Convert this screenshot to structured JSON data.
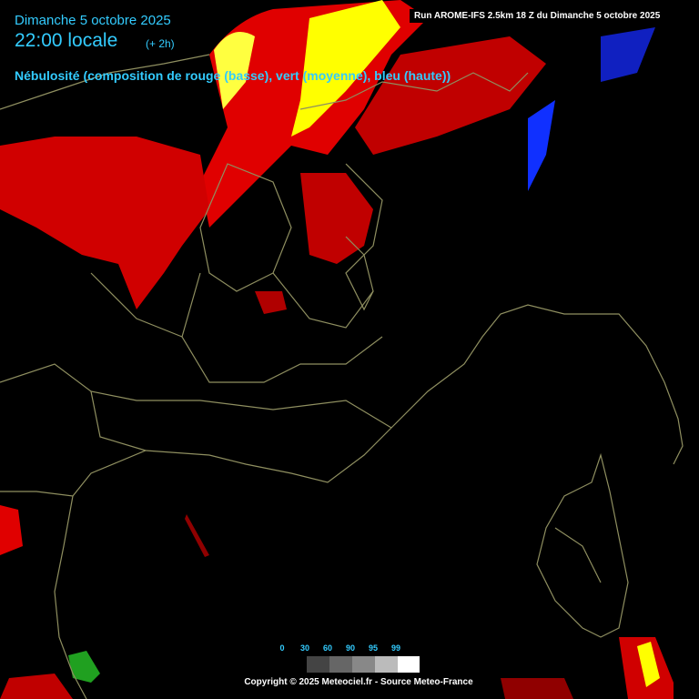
{
  "header": {
    "date": "Dimanche 5 octobre 2025",
    "time": "22:00 locale",
    "lead": "(+ 2h)",
    "description": "Nébulosité (composition de rouge (basse), vert (moyenne), bleu (haute))",
    "run": "Run AROME-IFS 2.5km 18 Z du Dimanche 5 octobre 2025"
  },
  "legend": {
    "ticks": [
      0,
      30,
      60,
      90,
      95,
      99
    ]
  },
  "footer": "Copyright © 2025 Meteociel.fr - Source Meteo-France"
}
